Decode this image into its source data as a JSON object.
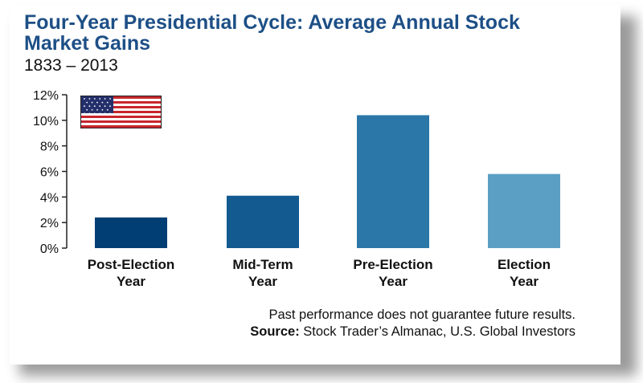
{
  "chart_data": {
    "type": "bar",
    "title": "Four-Year Presidential Cycle: Average Annual Stock Market Gains",
    "subtitle": "1833 – 2013",
    "categories": [
      [
        "Post-Election",
        "Year"
      ],
      [
        "Mid-Term",
        "Year"
      ],
      [
        "Pre-Election",
        "Year"
      ],
      [
        "Election",
        "Year"
      ]
    ],
    "values": [
      2.4,
      4.1,
      10.4,
      5.8
    ],
    "bar_colors": [
      "#003e73",
      "#125a8f",
      "#2b77a8",
      "#5b9fc4"
    ],
    "ylim": [
      0,
      12
    ],
    "yticks": [
      0,
      2,
      4,
      6,
      8,
      10,
      12
    ],
    "ytick_labels": [
      "0%",
      "2%",
      "4%",
      "6%",
      "8%",
      "10%",
      "12%"
    ],
    "grid": false,
    "legend": "none"
  },
  "footnote": {
    "disclaimer": "Past performance does not guarantee future results.",
    "source_label": "Source:",
    "source_text": " Stock Trader’s Almanac, U.S. Global Investors"
  },
  "icons": {
    "flag": "us-flag-icon"
  },
  "colors": {
    "title": "#1d4f86"
  }
}
